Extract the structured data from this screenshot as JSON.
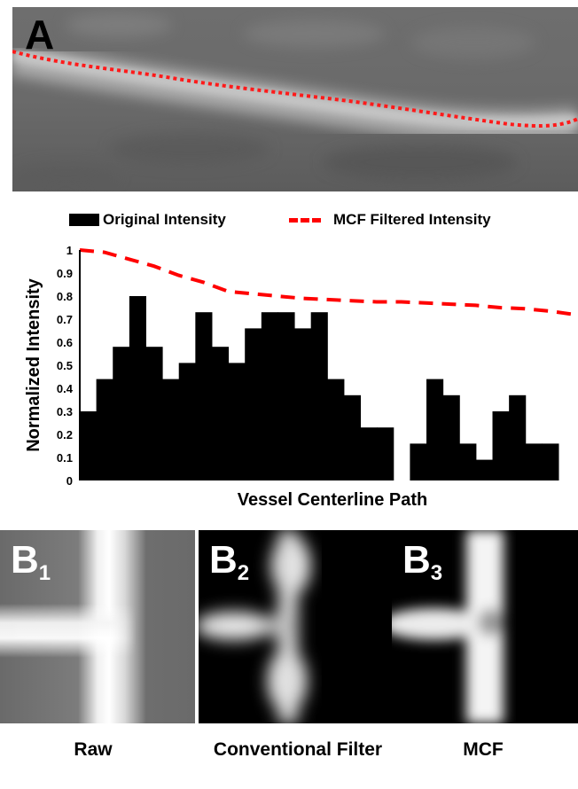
{
  "panel_a": {
    "letter": "A"
  },
  "legend": {
    "original_label": "Original Intensity",
    "mcf_label": "MCF Filtered Intensity",
    "original_color": "#000000",
    "mcf_color": "#ff0000"
  },
  "chart_data": {
    "type": "bar",
    "xlabel": "Vessel Centerline Path",
    "ylabel": "Normalized Intensity",
    "ylim": [
      0,
      1
    ],
    "yticks": [
      "0",
      "0.1",
      "0.2",
      "0.3",
      "0.4",
      "0.5",
      "0.6",
      "0.7",
      "0.8",
      "0.9",
      "1"
    ],
    "grid": false,
    "legend_position": "top",
    "series": [
      {
        "type": "bar",
        "color": "#000000",
        "values": [
          0.3,
          0.44,
          0.58,
          0.8,
          0.58,
          0.44,
          0.51,
          0.73,
          0.58,
          0.51,
          0.66,
          0.73,
          0.73,
          0.66,
          0.73,
          0.44,
          0.37,
          0.23,
          0.23,
          0.0,
          0.16,
          0.44,
          0.37,
          0.16,
          0.09,
          0.3,
          0.37,
          0.16,
          0.16
        ]
      },
      {
        "type": "line",
        "style": "dashed",
        "color": "#ff0000",
        "x": [
          0,
          0.05,
          0.1,
          0.15,
          0.2,
          0.25,
          0.3,
          0.35,
          0.4,
          0.45,
          0.5,
          0.55,
          0.6,
          0.65,
          0.7,
          0.75,
          0.8,
          0.85,
          0.9,
          0.95,
          1.0
        ],
        "values": [
          1.0,
          0.99,
          0.96,
          0.93,
          0.89,
          0.86,
          0.82,
          0.81,
          0.8,
          0.79,
          0.785,
          0.78,
          0.775,
          0.775,
          0.77,
          0.765,
          0.76,
          0.75,
          0.745,
          0.735,
          0.72
        ]
      }
    ]
  },
  "panels_b": [
    {
      "letter": "B",
      "sub": "1",
      "caption": "Raw"
    },
    {
      "letter": "B",
      "sub": "2",
      "caption": "Conventional Filter"
    },
    {
      "letter": "B",
      "sub": "3",
      "caption": "MCF"
    }
  ]
}
